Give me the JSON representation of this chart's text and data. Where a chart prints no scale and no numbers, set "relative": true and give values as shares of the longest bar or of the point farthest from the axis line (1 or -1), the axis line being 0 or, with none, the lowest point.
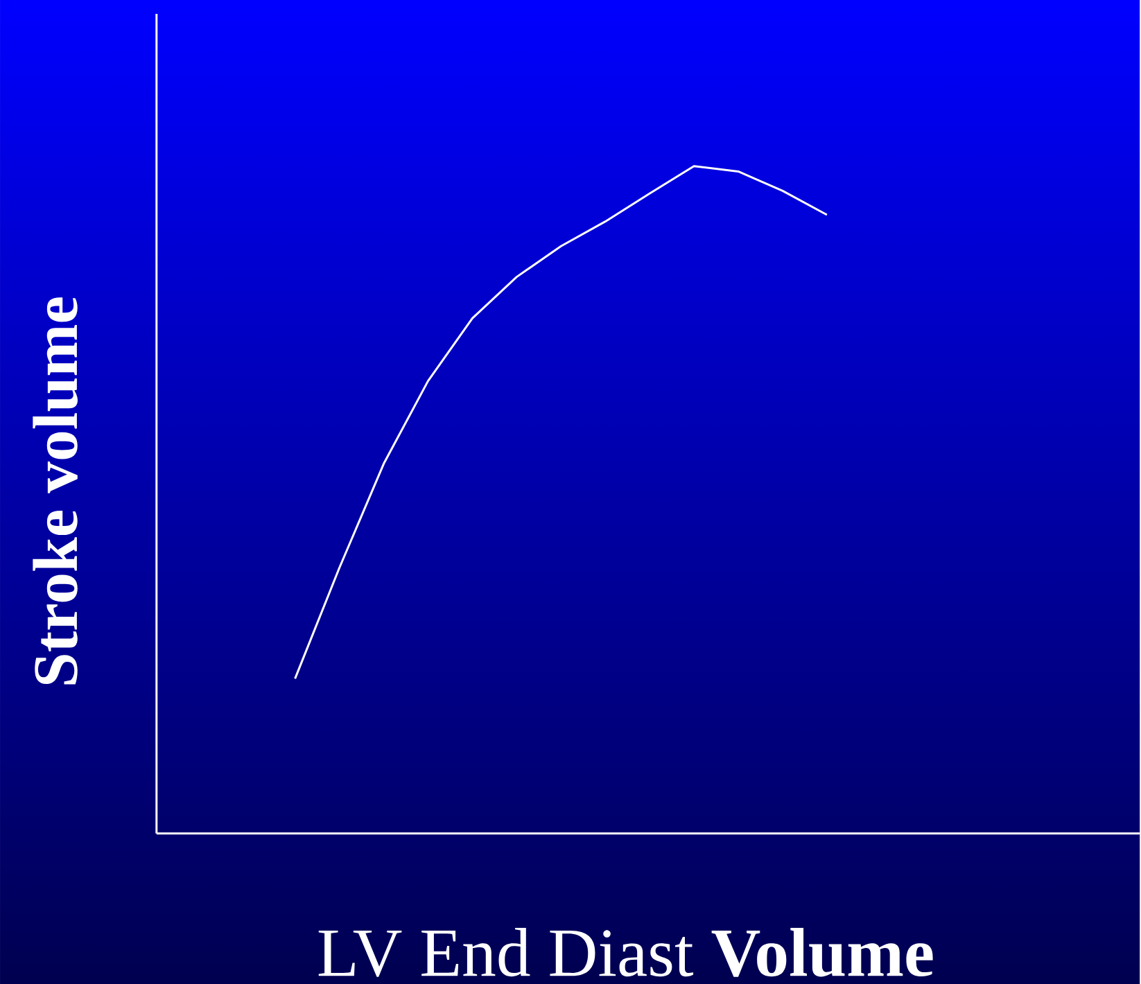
{
  "chart_data": {
    "type": "line",
    "relative": true,
    "xlabel": "LV End Diast **Volume**",
    "ylabel": "Stroke volume",
    "categories": [
      null,
      null,
      null,
      null,
      null,
      null,
      null,
      null,
      null,
      null,
      null,
      null,
      null
    ],
    "color": "#ffffff",
    "values": [
      0.232,
      0.398,
      0.554,
      0.678,
      0.772,
      0.834,
      0.88,
      0.917,
      0.959,
      1.0,
      0.992,
      0.963,
      0.927
    ]
  }
}
